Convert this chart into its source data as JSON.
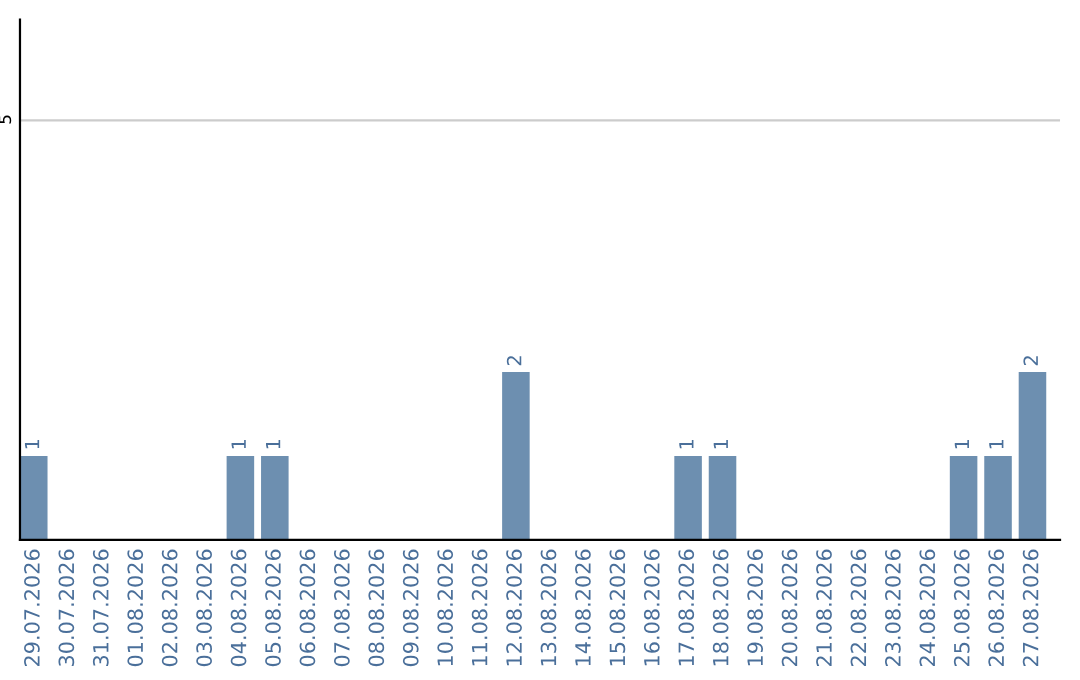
{
  "chart_data": {
    "type": "bar",
    "categories": [
      "29.07.2026",
      "30.07.2026",
      "31.07.2026",
      "01.08.2026",
      "02.08.2026",
      "03.08.2026",
      "04.08.2026",
      "05.08.2026",
      "06.08.2026",
      "07.08.2026",
      "08.08.2026",
      "09.08.2026",
      "10.08.2026",
      "11.08.2026",
      "12.08.2026",
      "13.08.2026",
      "14.08.2026",
      "15.08.2026",
      "16.08.2026",
      "17.08.2026",
      "18.08.2026",
      "19.08.2026",
      "20.08.2026",
      "21.08.2026",
      "22.08.2026",
      "23.08.2026",
      "24.08.2026",
      "25.08.2026",
      "26.08.2026",
      "27.08.2026"
    ],
    "values": [
      1,
      0,
      0,
      0,
      0,
      0,
      1,
      1,
      0,
      0,
      0,
      0,
      0,
      0,
      2,
      0,
      0,
      0,
      0,
      1,
      1,
      0,
      0,
      0,
      0,
      0,
      0,
      1,
      1,
      2
    ],
    "value_labels": [
      "1",
      null,
      null,
      null,
      null,
      null,
      "1",
      "1",
      null,
      null,
      null,
      null,
      null,
      null,
      "2",
      null,
      null,
      null,
      null,
      "1",
      "1",
      null,
      null,
      null,
      null,
      null,
      null,
      "1",
      "1",
      "2"
    ],
    "color": "#6d8fb0",
    "ylim": [
      0,
      6.2
    ],
    "yticks": [
      5
    ],
    "grid": "y",
    "legend": false
  }
}
